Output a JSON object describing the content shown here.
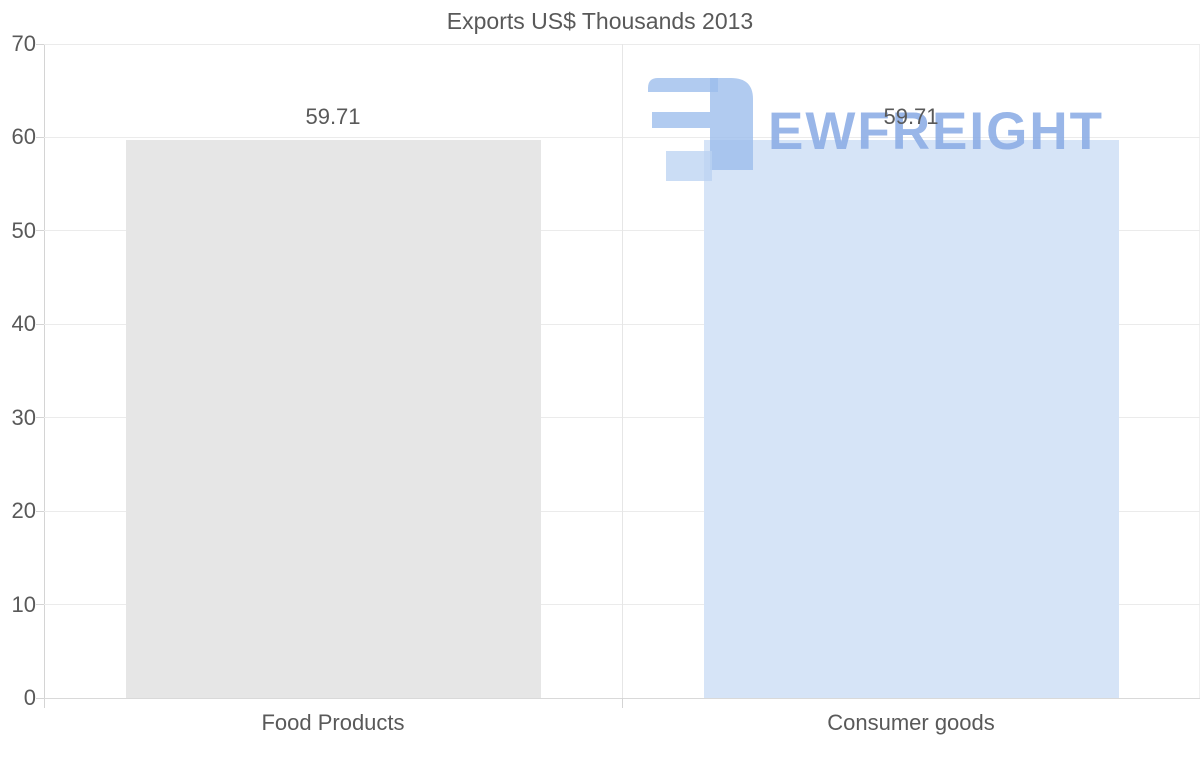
{
  "chart_data": {
    "type": "bar",
    "title": "Exports US$ Thousands 2013",
    "categories": [
      "Food Products",
      "Consumer goods"
    ],
    "values": [
      59.71,
      59.71
    ],
    "value_labels": [
      "59.71",
      "59.71"
    ],
    "bar_colors": [
      "#e6e6e6",
      "#d6e4f7"
    ],
    "ylim": [
      0,
      70
    ],
    "yticks": [
      0,
      10,
      20,
      30,
      40,
      50,
      60,
      70
    ],
    "grid": true,
    "legend": "none",
    "xlabel": "",
    "ylabel": ""
  },
  "watermark": {
    "text": "EWFREIGHT",
    "icon": "ew-freight-logo",
    "text_color": "#8cade5",
    "icon_color": "#9bbcec",
    "icon_color_light": "#b9d2f2"
  },
  "theme": {
    "background": "#ffffff",
    "text_color": "#595959",
    "gridline_color": "#ebebeb",
    "baseline_color": "#d9d9d9",
    "axis_color": "#d4d4d4"
  }
}
